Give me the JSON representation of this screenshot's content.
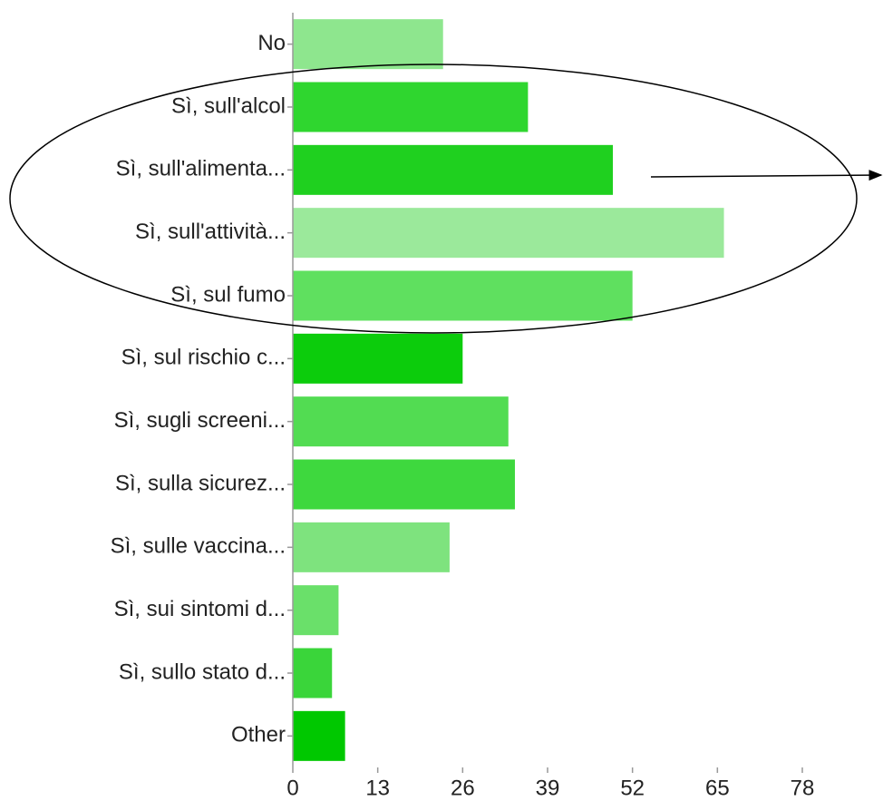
{
  "chart_data": {
    "type": "barh",
    "categories": [
      "No",
      "Sì, sull'alcol",
      "Sì, sull'alimenta...",
      "Sì, sull'attività...",
      "Sì, sul fumo",
      "Sì, sul rischio c...",
      "Sì, sugli screeni...",
      "Sì, sulla sicurez...",
      "Sì, sulle vaccina...",
      "Sì, sui sintomi d...",
      "Sì, sullo stato d...",
      "Other"
    ],
    "values": [
      23,
      36,
      49,
      66,
      52,
      26,
      33,
      34,
      24,
      7,
      6,
      8
    ],
    "colors": [
      "#8ee68e",
      "#2fd62f",
      "#1fd01f",
      "#9be99b",
      "#5fe05f",
      "#0ccc0c",
      "#52dc52",
      "#3ed83e",
      "#7ee37e",
      "#6ae06a",
      "#3ad53a",
      "#00c800"
    ],
    "xlim": [
      0,
      78
    ],
    "xticks": [
      0,
      13,
      26,
      39,
      52,
      65,
      78
    ],
    "grid": false
  }
}
